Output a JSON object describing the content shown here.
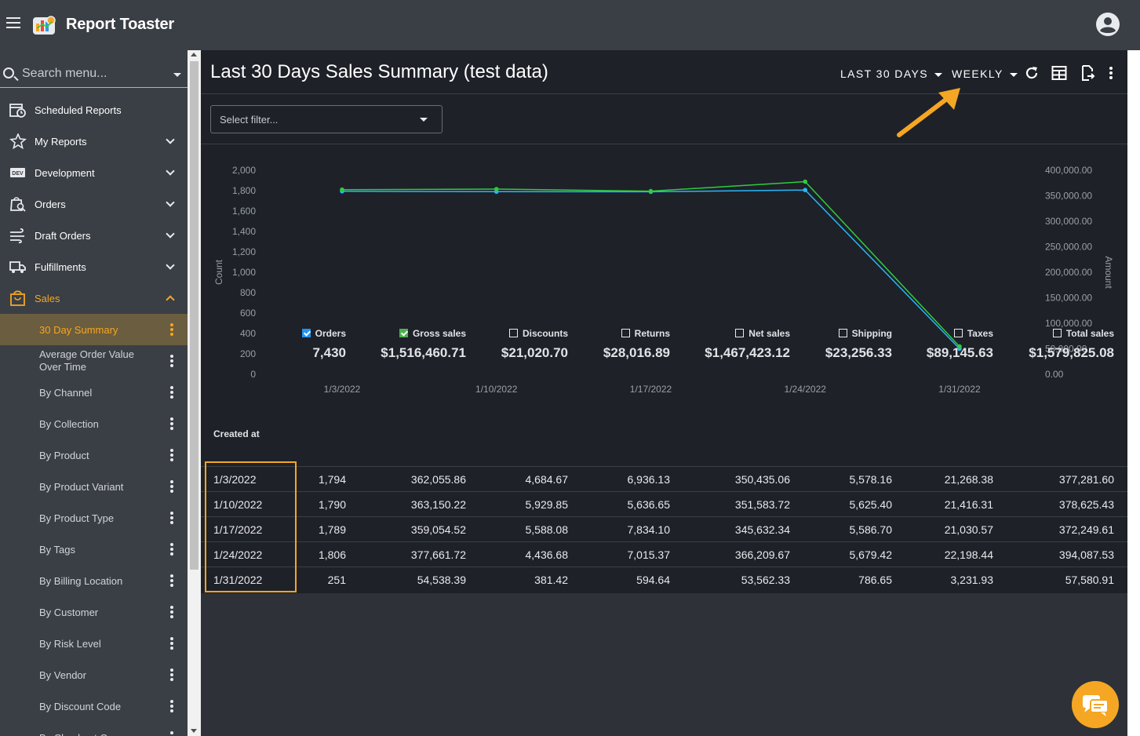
{
  "app": {
    "title": "Report Toaster"
  },
  "search": {
    "placeholder": "Search menu..."
  },
  "nav": {
    "items": [
      {
        "label": "Scheduled Reports",
        "icon": "calendar-clock-icon"
      },
      {
        "label": "My Reports",
        "icon": "star-icon"
      },
      {
        "label": "Development",
        "icon": "dev-badge-icon"
      },
      {
        "label": "Orders",
        "icon": "order-search-icon"
      },
      {
        "label": "Draft Orders",
        "icon": "wind-lines-icon"
      },
      {
        "label": "Fulfillments",
        "icon": "truck-icon"
      },
      {
        "label": "Sales",
        "icon": "shopping-bag-icon"
      }
    ],
    "sales_subitems": [
      "30 Day Summary",
      "Average Order Value Over Time",
      "By Channel",
      "By Collection",
      "By Product",
      "By Product Variant",
      "By Product Type",
      "By Tags",
      "By Billing Location",
      "By Customer",
      "By Risk Level",
      "By Vendor",
      "By Discount Code",
      "By Checkout Currency"
    ]
  },
  "header": {
    "title": "Last 30 Days Sales Summary (test data)",
    "range_label": "LAST 30 DAYS",
    "period_label": "WEEKLY"
  },
  "filter": {
    "placeholder": "Select filter..."
  },
  "colors": {
    "accent": "#f5a623",
    "orders_series": "#29b6f6",
    "gross_series": "#2ecc40"
  },
  "chart_data": {
    "type": "line",
    "x": [
      "1/3/2022",
      "1/10/2022",
      "1/17/2022",
      "1/24/2022",
      "1/31/2022"
    ],
    "series": [
      {
        "name": "Orders",
        "axis": "left",
        "values": [
          1794,
          1790,
          1789,
          1806,
          251
        ]
      },
      {
        "name": "Gross sales",
        "axis": "right",
        "values": [
          362055.86,
          363150.22,
          359054.52,
          377661.72,
          54538.39
        ]
      }
    ],
    "ylabel": "Count",
    "ylabel_right": "Amount",
    "ylim": [
      0,
      2000
    ],
    "ylim_right": [
      0,
      400000
    ],
    "yticks_left": [
      "0",
      "200",
      "400",
      "600",
      "800",
      "1,000",
      "1,200",
      "1,400",
      "1,600",
      "1,800",
      "2,000"
    ],
    "yticks_right": [
      "0.00",
      "50,000.00",
      "100,000.00",
      "150,000.00",
      "200,000.00",
      "250,000.00",
      "300,000.00",
      "350,000.00",
      "400,000.00"
    ],
    "grid": false
  },
  "table": {
    "created_at_label": "Created at",
    "columns": [
      {
        "name": "Orders",
        "total": "7,430",
        "checked": "blue"
      },
      {
        "name": "Gross sales",
        "total": "$1,516,460.71",
        "checked": "green"
      },
      {
        "name": "Discounts",
        "total": "$21,020.70",
        "checked": "none"
      },
      {
        "name": "Returns",
        "total": "$28,016.89",
        "checked": "none"
      },
      {
        "name": "Net sales",
        "total": "$1,467,423.12",
        "checked": "none"
      },
      {
        "name": "Shipping",
        "total": "$23,256.33",
        "checked": "none"
      },
      {
        "name": "Taxes",
        "total": "$89,145.63",
        "checked": "none"
      },
      {
        "name": "Total sales",
        "total": "$1,579,825.08",
        "checked": "none"
      }
    ],
    "rows": [
      [
        "1/3/2022",
        "1,794",
        "362,055.86",
        "4,684.67",
        "6,936.13",
        "350,435.06",
        "5,578.16",
        "21,268.38",
        "377,281.60"
      ],
      [
        "1/10/2022",
        "1,790",
        "363,150.22",
        "5,929.85",
        "5,636.65",
        "351,583.72",
        "5,625.40",
        "21,416.31",
        "378,625.43"
      ],
      [
        "1/17/2022",
        "1,789",
        "359,054.52",
        "5,588.08",
        "7,834.10",
        "345,632.34",
        "5,586.70",
        "21,030.57",
        "372,249.61"
      ],
      [
        "1/24/2022",
        "1,806",
        "377,661.72",
        "4,436.68",
        "7,015.37",
        "366,209.67",
        "5,679.42",
        "22,198.44",
        "394,087.53"
      ],
      [
        "1/31/2022",
        "251",
        "54,538.39",
        "381.42",
        "594.64",
        "53,562.33",
        "786.65",
        "3,231.93",
        "57,580.91"
      ]
    ]
  }
}
